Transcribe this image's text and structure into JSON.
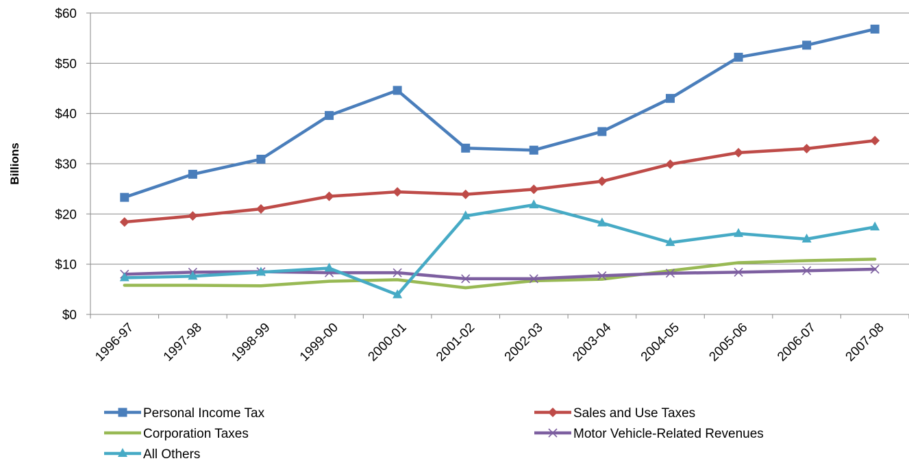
{
  "chart_data": {
    "type": "line",
    "title": "",
    "xlabel": "",
    "ylabel": "Billions",
    "ylim": [
      0,
      60
    ],
    "yticks": [
      0,
      10,
      20,
      30,
      40,
      50,
      60
    ],
    "ytick_labels": [
      "$0",
      "$10",
      "$20",
      "$30",
      "$40",
      "$50",
      "$60"
    ],
    "grid": "horizontal",
    "legend_position": "bottom",
    "categories": [
      "1996-97",
      "1997-98",
      "1998-99",
      "1999-00",
      "2000-01",
      "2001-02",
      "2002-03",
      "2003-04",
      "2004-05",
      "2005-06",
      "2006-07",
      "2007-08"
    ],
    "series": [
      {
        "name": "Personal Income Tax",
        "color": "#4a7ebb",
        "marker": "square",
        "values": [
          23.3,
          27.9,
          30.9,
          39.6,
          44.6,
          33.1,
          32.7,
          36.4,
          43.0,
          51.2,
          53.6,
          56.8
        ]
      },
      {
        "name": "Sales and Use Taxes",
        "color": "#be4b48",
        "marker": "diamond",
        "values": [
          18.4,
          19.6,
          21.0,
          23.5,
          24.4,
          23.9,
          24.9,
          26.5,
          29.9,
          32.2,
          33.0,
          34.6
        ]
      },
      {
        "name": "Corporation Taxes",
        "color": "#98b954",
        "marker": "none",
        "values": [
          5.8,
          5.8,
          5.7,
          6.6,
          6.9,
          5.3,
          6.7,
          7.0,
          8.7,
          10.3,
          10.7,
          11.0
        ]
      },
      {
        "name": "Motor Vehicle-Related Revenues",
        "color": "#7d5fa0",
        "marker": "x",
        "values": [
          8.0,
          8.4,
          8.5,
          8.3,
          8.3,
          7.1,
          7.1,
          7.7,
          8.2,
          8.4,
          8.7,
          9.0
        ]
      },
      {
        "name": "All Others",
        "color": "#46aac5",
        "marker": "triangle",
        "values": [
          7.3,
          7.6,
          8.4,
          9.2,
          3.9,
          19.6,
          21.8,
          18.2,
          14.3,
          16.1,
          15.0,
          17.4
        ]
      }
    ]
  }
}
